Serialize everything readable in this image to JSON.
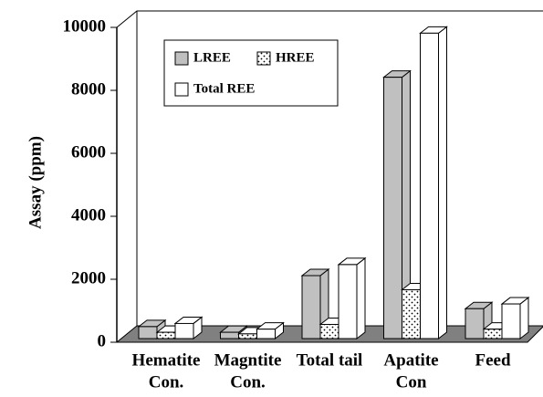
{
  "chart_data": {
    "type": "bar3d",
    "y_label": "Assay (ppm)",
    "categories": [
      [
        "Hematite",
        "Con."
      ],
      [
        "Magntite",
        "Con."
      ],
      [
        "Total tail"
      ],
      [
        "Apatite",
        "Con"
      ],
      [
        "Feed"
      ]
    ],
    "series": [
      {
        "name": "LREE",
        "color": "#c0c0c0",
        "values": [
          380,
          200,
          2000,
          8300,
          950
        ]
      },
      {
        "name": "HREE",
        "color": "dotted",
        "values": [
          200,
          150,
          450,
          1550,
          300
        ]
      },
      {
        "name": "Total REE",
        "color": "#ffffff",
        "values": [
          480,
          300,
          2350,
          9700,
          1100
        ]
      }
    ],
    "ylim": [
      0,
      10000
    ],
    "yticks": [
      0,
      2000,
      4000,
      6000,
      8000,
      10000
    ]
  }
}
